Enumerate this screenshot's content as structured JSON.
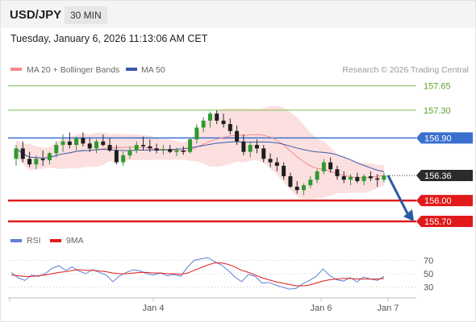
{
  "header": {
    "symbol": "USD/JPY",
    "timeframe": "30 MIN",
    "timestamp": "Tuesday, January 6, 2026 11:13:06 AM CET"
  },
  "chart_data": [
    {
      "type": "candlestick",
      "title": "",
      "legend": [
        {
          "label": "MA 20 + Bollinger Bands",
          "color": "#f08a8a"
        },
        {
          "label": "MA 50",
          "color": "#3a5aa8"
        }
      ],
      "credit": "Research © 2026 Trading Central",
      "ylim": [
        155.55,
        157.75
      ],
      "levels": [
        {
          "label": "157.65",
          "value": 157.65,
          "color": "#7cc24a",
          "kind": "resistance"
        },
        {
          "label": "157.30",
          "value": 157.3,
          "color": "#7cc24a",
          "kind": "resistance"
        },
        {
          "label": "156.90",
          "value": 156.9,
          "color": "#3a6fd0",
          "kind": "pivot"
        },
        {
          "label": "156.00",
          "value": 156.0,
          "color": "#e01a1a",
          "kind": "support"
        },
        {
          "label": "155.70",
          "value": 155.7,
          "color": "#e01a1a",
          "kind": "support"
        }
      ],
      "current_price": {
        "label": "156.36",
        "value": 156.36
      },
      "forecast_arrow": {
        "from": 156.36,
        "to": 155.7,
        "color": "#2a5aa0"
      },
      "x_ticks": [
        "Jan 4",
        "Jan 6",
        "Jan 7"
      ],
      "candles": [
        [
          156.6,
          156.8,
          156.5,
          156.75
        ],
        [
          156.75,
          156.85,
          156.55,
          156.6
        ],
        [
          156.6,
          156.7,
          156.48,
          156.52
        ],
        [
          156.52,
          156.65,
          156.45,
          156.6
        ],
        [
          156.6,
          156.72,
          156.5,
          156.58
        ],
        [
          156.58,
          156.7,
          156.52,
          156.68
        ],
        [
          156.68,
          156.85,
          156.62,
          156.8
        ],
        [
          156.8,
          156.95,
          156.7,
          156.85
        ],
        [
          156.85,
          156.98,
          156.75,
          156.8
        ],
        [
          156.8,
          156.92,
          156.72,
          156.9
        ],
        [
          156.9,
          156.98,
          156.78,
          156.82
        ],
        [
          156.82,
          156.9,
          156.7,
          156.75
        ],
        [
          156.75,
          156.88,
          156.68,
          156.85
        ],
        [
          156.85,
          156.95,
          156.78,
          156.8
        ],
        [
          156.8,
          156.9,
          156.7,
          156.72
        ],
        [
          156.72,
          156.8,
          156.52,
          156.55
        ],
        [
          156.55,
          156.7,
          156.5,
          156.65
        ],
        [
          156.65,
          156.78,
          156.6,
          156.72
        ],
        [
          156.72,
          156.85,
          156.68,
          156.8
        ],
        [
          156.8,
          156.92,
          156.72,
          156.78
        ],
        [
          156.78,
          156.88,
          156.7,
          156.75
        ],
        [
          156.75,
          156.82,
          156.68,
          156.72
        ],
        [
          156.72,
          156.8,
          156.66,
          156.74
        ],
        [
          156.74,
          156.8,
          156.68,
          156.7
        ],
        [
          156.7,
          156.76,
          156.64,
          156.72
        ],
        [
          156.72,
          156.78,
          156.66,
          156.7
        ],
        [
          156.7,
          156.9,
          156.68,
          156.88
        ],
        [
          156.88,
          157.1,
          156.82,
          157.05
        ],
        [
          157.05,
          157.2,
          156.98,
          157.15
        ],
        [
          157.15,
          157.28,
          157.05,
          157.25
        ],
        [
          157.25,
          157.3,
          157.1,
          157.15
        ],
        [
          157.15,
          157.25,
          157.05,
          157.1
        ],
        [
          157.1,
          157.18,
          156.95,
          157.0
        ],
        [
          157.0,
          157.08,
          156.8,
          156.85
        ],
        [
          156.85,
          156.95,
          156.65,
          156.7
        ],
        [
          156.7,
          156.85,
          156.62,
          156.8
        ],
        [
          156.8,
          156.88,
          156.68,
          156.75
        ],
        [
          156.75,
          156.8,
          156.55,
          156.6
        ],
        [
          156.6,
          156.68,
          156.48,
          156.55
        ],
        [
          156.55,
          156.62,
          156.42,
          156.5
        ],
        [
          156.5,
          156.55,
          156.3,
          156.35
        ],
        [
          156.35,
          156.4,
          156.18,
          156.2
        ],
        [
          156.2,
          156.28,
          156.1,
          156.15
        ],
        [
          156.15,
          156.25,
          156.08,
          156.22
        ],
        [
          156.22,
          156.35,
          156.18,
          156.3
        ],
        [
          156.3,
          156.45,
          156.25,
          156.42
        ],
        [
          156.42,
          156.6,
          156.38,
          156.55
        ],
        [
          156.55,
          156.62,
          156.4,
          156.45
        ],
        [
          156.45,
          156.5,
          156.3,
          156.35
        ],
        [
          156.35,
          156.42,
          156.25,
          156.3
        ],
        [
          156.3,
          156.38,
          156.22,
          156.34
        ],
        [
          156.34,
          156.4,
          156.25,
          156.28
        ],
        [
          156.28,
          156.38,
          156.22,
          156.35
        ],
        [
          156.35,
          156.42,
          156.28,
          156.32
        ],
        [
          156.32,
          156.38,
          156.2,
          156.3
        ],
        [
          156.3,
          156.4,
          156.26,
          156.36
        ]
      ]
    },
    {
      "type": "line",
      "title": "",
      "legend": [
        {
          "label": "RSI",
          "color": "#5b7fd6"
        },
        {
          "label": "9MA",
          "color": "#e01a1a"
        }
      ],
      "ylim": [
        20,
        80
      ],
      "y_ticks": [
        "70",
        "50",
        "30"
      ],
      "series": [
        {
          "name": "RSI",
          "color": "#5b7fd6",
          "values": [
            52,
            44,
            40,
            48,
            46,
            50,
            58,
            62,
            55,
            60,
            54,
            50,
            56,
            52,
            48,
            38,
            47,
            52,
            56,
            54,
            50,
            48,
            51,
            47,
            49,
            46,
            60,
            70,
            72,
            74,
            68,
            63,
            55,
            45,
            38,
            49,
            46,
            36,
            37,
            33,
            30,
            27,
            28,
            35,
            40,
            46,
            57,
            47,
            41,
            39,
            44,
            38,
            45,
            42,
            40,
            46
          ]
        },
        {
          "name": "9MA",
          "color": "#e01a1a",
          "values": [
            48,
            47,
            46,
            46,
            47,
            48,
            50,
            52,
            53,
            55,
            56,
            55,
            55,
            54,
            53,
            51,
            50,
            50,
            51,
            52,
            52,
            51,
            51,
            50,
            50,
            49,
            51,
            55,
            59,
            63,
            66,
            66,
            64,
            60,
            55,
            52,
            48,
            44,
            41,
            38,
            36,
            34,
            32,
            32,
            33,
            36,
            39,
            41,
            42,
            43,
            43,
            42,
            42,
            42,
            42,
            43
          ]
        }
      ]
    }
  ]
}
